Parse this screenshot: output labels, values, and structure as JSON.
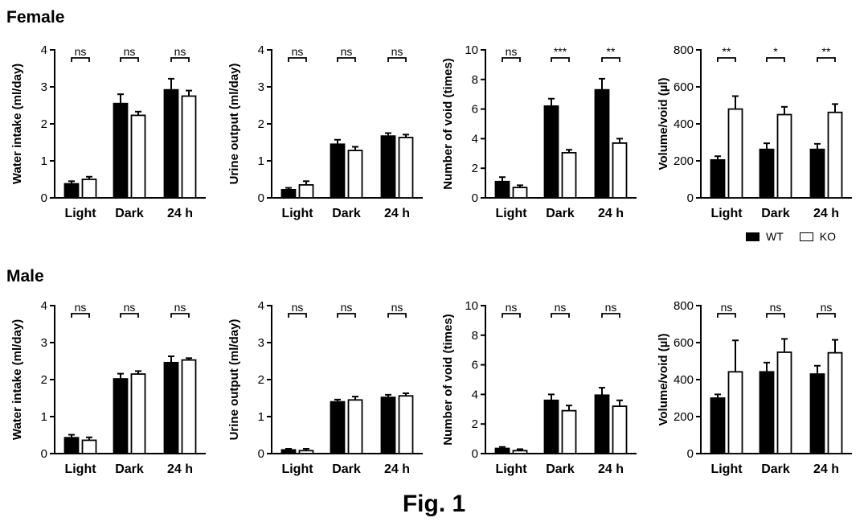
{
  "rows": [
    {
      "title": "Female"
    },
    {
      "title": "Male"
    }
  ],
  "legend": [
    {
      "name": "WT",
      "color": "#000000"
    },
    {
      "name": "KO",
      "color": "#ffffff"
    }
  ],
  "figure_label": "Fig. 1",
  "chart_data": [
    {
      "type": "bar",
      "row": "Female",
      "ylabel": "Water intake (ml/day)",
      "ylim": [
        0,
        4
      ],
      "yticks": [
        0,
        1,
        2,
        3,
        4
      ],
      "categories": [
        "Light",
        "Dark",
        "24 h"
      ],
      "series": [
        {
          "name": "WT",
          "values": [
            0.38,
            2.55,
            2.92
          ],
          "errors": [
            0.07,
            0.25,
            0.3
          ]
        },
        {
          "name": "KO",
          "values": [
            0.5,
            2.23,
            2.75
          ],
          "errors": [
            0.07,
            0.1,
            0.15
          ]
        }
      ],
      "significance": [
        "ns",
        "ns",
        "ns"
      ]
    },
    {
      "type": "bar",
      "row": "Female",
      "ylabel": "Urine output (ml/day)",
      "ylim": [
        0,
        4
      ],
      "yticks": [
        0,
        1,
        2,
        3,
        4
      ],
      "categories": [
        "Light",
        "Dark",
        "24 h"
      ],
      "series": [
        {
          "name": "WT",
          "values": [
            0.22,
            1.45,
            1.67
          ],
          "errors": [
            0.05,
            0.12,
            0.08
          ]
        },
        {
          "name": "KO",
          "values": [
            0.35,
            1.28,
            1.63
          ],
          "errors": [
            0.1,
            0.1,
            0.08
          ]
        }
      ],
      "significance": [
        "ns",
        "ns",
        "ns"
      ]
    },
    {
      "type": "bar",
      "row": "Female",
      "ylabel": "Number of void (times)",
      "ylim": [
        0,
        10
      ],
      "yticks": [
        0,
        2,
        4,
        6,
        8,
        10
      ],
      "categories": [
        "Light",
        "Dark",
        "24 h"
      ],
      "series": [
        {
          "name": "WT",
          "values": [
            1.1,
            6.2,
            7.3
          ],
          "errors": [
            0.3,
            0.5,
            0.75
          ]
        },
        {
          "name": "KO",
          "values": [
            0.7,
            3.05,
            3.7
          ],
          "errors": [
            0.15,
            0.2,
            0.3
          ]
        }
      ],
      "significance": [
        "ns",
        "***",
        "**"
      ]
    },
    {
      "type": "bar",
      "row": "Female",
      "ylabel": "Volume/void (µl)",
      "ylim": [
        0,
        800
      ],
      "yticks": [
        0,
        200,
        400,
        600,
        800
      ],
      "categories": [
        "Light",
        "Dark",
        "24 h"
      ],
      "series": [
        {
          "name": "WT",
          "values": [
            205,
            262,
            262
          ],
          "errors": [
            20,
            33,
            30
          ]
        },
        {
          "name": "KO",
          "values": [
            480,
            450,
            462
          ],
          "errors": [
            70,
            42,
            45
          ]
        }
      ],
      "significance": [
        "**",
        "*",
        "**"
      ]
    },
    {
      "type": "bar",
      "row": "Male",
      "ylabel": "Water intake (ml/day)",
      "ylim": [
        0,
        4
      ],
      "yticks": [
        0,
        1,
        2,
        3,
        4
      ],
      "categories": [
        "Light",
        "Dark",
        "24 h"
      ],
      "series": [
        {
          "name": "WT",
          "values": [
            0.43,
            2.02,
            2.46
          ],
          "errors": [
            0.08,
            0.14,
            0.17
          ]
        },
        {
          "name": "KO",
          "values": [
            0.36,
            2.15,
            2.53
          ],
          "errors": [
            0.08,
            0.08,
            0.05
          ]
        }
      ],
      "significance": [
        "ns",
        "ns",
        "ns"
      ]
    },
    {
      "type": "bar",
      "row": "Male",
      "ylabel": "Urine output (ml/day)",
      "ylim": [
        0,
        4
      ],
      "yticks": [
        0,
        1,
        2,
        3,
        4
      ],
      "categories": [
        "Light",
        "Dark",
        "24 h"
      ],
      "series": [
        {
          "name": "WT",
          "values": [
            0.1,
            1.4,
            1.52
          ],
          "errors": [
            0.03,
            0.06,
            0.07
          ]
        },
        {
          "name": "KO",
          "values": [
            0.08,
            1.45,
            1.56
          ],
          "errors": [
            0.05,
            0.09,
            0.07
          ]
        }
      ],
      "significance": [
        "ns",
        "ns",
        "ns"
      ]
    },
    {
      "type": "bar",
      "row": "Male",
      "ylabel": "Number of void (times)",
      "ylim": [
        0,
        10
      ],
      "yticks": [
        0,
        2,
        4,
        6,
        8,
        10
      ],
      "categories": [
        "Light",
        "Dark",
        "24 h"
      ],
      "series": [
        {
          "name": "WT",
          "values": [
            0.35,
            3.6,
            3.95
          ],
          "errors": [
            0.1,
            0.4,
            0.5
          ]
        },
        {
          "name": "KO",
          "values": [
            0.2,
            2.9,
            3.2
          ],
          "errors": [
            0.1,
            0.35,
            0.4
          ]
        }
      ],
      "significance": [
        "ns",
        "ns",
        "ns"
      ]
    },
    {
      "type": "bar",
      "row": "Male",
      "ylabel": "Volume/void (µl)",
      "ylim": [
        0,
        800
      ],
      "yticks": [
        0,
        200,
        400,
        600,
        800
      ],
      "categories": [
        "Light",
        "Dark",
        "24 h"
      ],
      "series": [
        {
          "name": "WT",
          "values": [
            300,
            442,
            430
          ],
          "errors": [
            20,
            50,
            45
          ]
        },
        {
          "name": "KO",
          "values": [
            442,
            548,
            545
          ],
          "errors": [
            170,
            72,
            70
          ]
        }
      ],
      "significance": [
        "ns",
        "ns",
        "ns"
      ]
    }
  ]
}
